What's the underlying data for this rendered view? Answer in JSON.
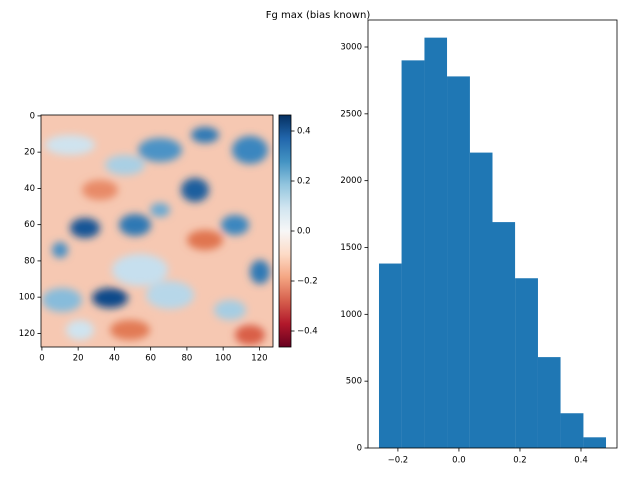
{
  "title": "Fg max (bias known)",
  "chart_data": [
    {
      "type": "heatmap",
      "colormap": "RdBu",
      "xlim": [
        -0.5,
        127.5
      ],
      "ylim": [
        127.5,
        -0.5
      ],
      "xticks": [
        0,
        20,
        40,
        60,
        80,
        100,
        120
      ],
      "yticks": [
        0,
        20,
        40,
        60,
        80,
        100,
        120
      ],
      "colorbar": {
        "lim": [
          -0.464,
          0.464
        ],
        "ticks": [
          {
            "value": -0.4,
            "label": "−0.4"
          },
          {
            "value": -0.2,
            "label": "−0.2"
          },
          {
            "value": 0,
            "label": "0.0"
          },
          {
            "value": 0.2,
            "label": "0.2"
          },
          {
            "value": 0.4,
            "label": "0.4"
          }
        ]
      }
    },
    {
      "type": "histogram",
      "color": "#1f77b4",
      "bins": [
        -0.262,
        -0.188,
        -0.113,
        -0.039,
        0.036,
        0.11,
        0.184,
        0.259,
        0.333,
        0.408,
        0.482
      ],
      "values": [
        1380,
        2900,
        3070,
        2780,
        2210,
        1690,
        1270,
        680,
        260,
        80
      ],
      "xlim": [
        -0.298,
        0.518
      ],
      "ylim": [
        0,
        3202
      ],
      "xticks": [
        {
          "value": -0.2,
          "label": "−0.2"
        },
        {
          "value": 0,
          "label": "0.0"
        },
        {
          "value": 0.2,
          "label": "0.2"
        },
        {
          "value": 0.4,
          "label": "0.4"
        }
      ],
      "yticks": [
        0,
        500,
        1000,
        1500,
        2000,
        2500,
        3000
      ]
    }
  ]
}
